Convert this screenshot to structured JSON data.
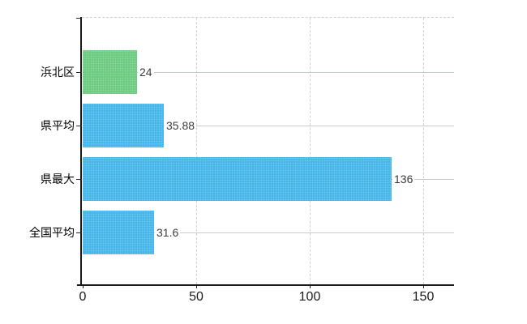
{
  "chart_data": {
    "type": "bar",
    "orientation": "horizontal",
    "title": "",
    "xlabel": "",
    "ylabel": "",
    "categories": [
      "浜北区",
      "県平均",
      "県最大",
      "全国平均"
    ],
    "series": [
      {
        "name": "values",
        "values": [
          24,
          35.88,
          136,
          31.6
        ],
        "value_labels": [
          "24",
          "35.88",
          "136",
          "31.6"
        ],
        "bar_colors": [
          "#6ecc80",
          "#47b7e9",
          "#47b7e9",
          "#47b7e9"
        ]
      }
    ],
    "x_ticks": [
      0,
      50,
      100,
      150
    ],
    "x_tick_labels": [
      "0",
      "50",
      "100",
      "150"
    ],
    "xlim": [
      0,
      163.5
    ],
    "grid": "both",
    "gridline_color_horizontal": "#c6cfc6",
    "gridline_color_vertical": "#d6ced6",
    "axis_color": "#1a1a1a",
    "legend": "none",
    "background": "#ffffff"
  }
}
